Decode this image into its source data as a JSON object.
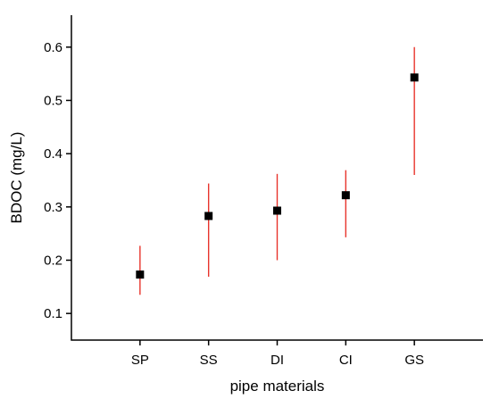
{
  "chart_data": {
    "type": "scatter",
    "xlabel": "pipe materials",
    "ylabel": "BDOC (mg/L)",
    "categories": [
      "SP",
      "SS",
      "DI",
      "CI",
      "GS"
    ],
    "series": [
      {
        "values": [
          0.173,
          0.283,
          0.293,
          0.322,
          0.543
        ],
        "lower": [
          0.135,
          0.169,
          0.2,
          0.243,
          0.36
        ],
        "upper": [
          0.227,
          0.344,
          0.362,
          0.369,
          0.6
        ],
        "marker_color": "#000000",
        "error_color": "#e8342c"
      }
    ],
    "ylim": [
      0.05,
      0.66
    ],
    "yticks": [
      0.1,
      0.2,
      0.3,
      0.4,
      0.5,
      0.6
    ],
    "ytick_labels": [
      "0.1",
      "0.2",
      "0.3",
      "0.4",
      "0.5",
      "0.6"
    ],
    "grid": false,
    "legend": "none"
  }
}
